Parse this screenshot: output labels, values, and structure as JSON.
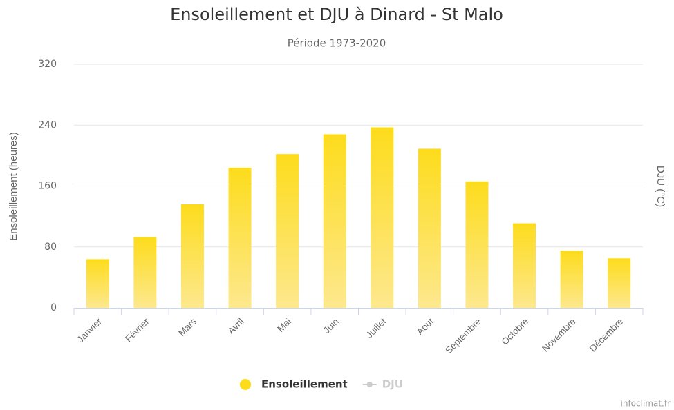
{
  "chart_data": {
    "type": "bar",
    "title": "Ensoleillement et DJU à Dinard - St Malo",
    "subtitle": "Période 1973-2020",
    "ylabel": "Ensoleillement (heures)",
    "y2label": "DJU (°C)",
    "credits": "infoclimat.fr",
    "categories": [
      "Janvier",
      "Février",
      "Mars",
      "Avril",
      "Mai",
      "Juin",
      "Juillet",
      "Aout",
      "Septembre",
      "Octobre",
      "Novembre",
      "Décembre"
    ],
    "series": [
      {
        "name": "Ensoleillement",
        "color": "#fddc1c",
        "values": [
          64,
          93,
          136,
          184,
          202,
          228,
          237,
          209,
          166,
          111,
          75,
          65
        ]
      },
      {
        "name": "DJU",
        "color": "#cccccc",
        "axis": "y2",
        "visible": false,
        "values": [
          null,
          null,
          null,
          null,
          null,
          null,
          null,
          null,
          null,
          null,
          null,
          null
        ]
      }
    ],
    "ylim": [
      0,
      320
    ],
    "yticks": [
      0,
      80,
      160,
      240,
      320
    ],
    "grid": true
  }
}
